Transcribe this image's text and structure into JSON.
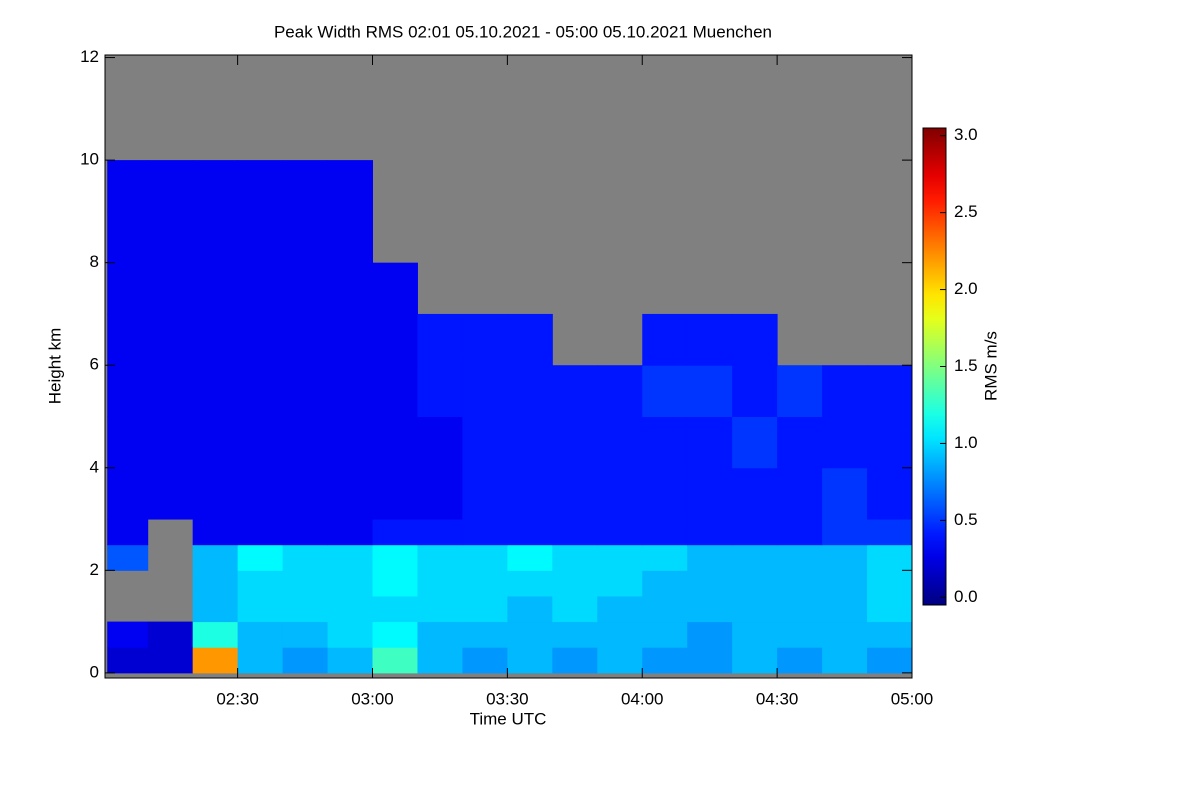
{
  "chart_data": {
    "type": "heatmap",
    "title": "Peak Width RMS   02:01 05.10.2021 - 05:00 05.10.2021 Muenchen",
    "x_label": "Time UTC",
    "y_label": "Height km",
    "colorbar_label": "RMS m/s",
    "colormap": "jet",
    "missing_color": "#808080",
    "xlim": [
      120.5,
      300
    ],
    "ylim": [
      -0.1,
      12.05
    ],
    "clim": [
      -0.05,
      3.05
    ],
    "xticks": [
      {
        "value": 150,
        "label": "02:30"
      },
      {
        "value": 180,
        "label": "03:00"
      },
      {
        "value": 210,
        "label": "03:30"
      },
      {
        "value": 240,
        "label": "04:00"
      },
      {
        "value": 270,
        "label": "04:30"
      },
      {
        "value": 300,
        "label": "05:00"
      }
    ],
    "yticks": [
      0,
      2,
      4,
      6,
      8,
      10,
      12
    ],
    "cticks": [
      {
        "value": 0,
        "label": "0.0"
      },
      {
        "value": 0.5,
        "label": "0.5"
      },
      {
        "value": 1,
        "label": "1.0"
      },
      {
        "value": 1.5,
        "label": "1.5"
      },
      {
        "value": 2,
        "label": "2.0"
      },
      {
        "value": 2.5,
        "label": "2.5"
      },
      {
        "value": 3,
        "label": "3.0"
      }
    ],
    "x_edges": [
      121,
      130,
      140,
      150,
      160,
      170,
      180,
      190,
      200,
      210,
      220,
      230,
      240,
      250,
      260,
      270,
      280,
      290,
      300
    ],
    "y_edges": [
      0,
      0.5,
      1,
      1.5,
      2,
      2.5,
      3,
      4,
      5,
      6,
      7,
      8,
      9,
      10
    ],
    "z": [
      [
        0.2,
        0.2,
        2.2,
        0.9,
        0.8,
        0.9,
        1.3,
        0.9,
        0.8,
        0.9,
        0.8,
        0.9,
        0.8,
        0.8,
        0.9,
        0.8,
        0.9,
        0.8
      ],
      [
        0.3,
        0.2,
        1.2,
        0.9,
        0.9,
        1.0,
        1.1,
        0.9,
        0.9,
        0.9,
        0.9,
        0.9,
        0.9,
        0.8,
        0.9,
        0.9,
        0.9,
        0.9
      ],
      [
        null,
        null,
        0.9,
        1.0,
        1.0,
        1.0,
        1.0,
        1.0,
        1.0,
        0.9,
        1.0,
        0.9,
        0.9,
        0.9,
        0.9,
        0.9,
        0.9,
        1.0
      ],
      [
        null,
        null,
        0.9,
        1.0,
        1.0,
        1.0,
        1.1,
        1.0,
        1.0,
        1.0,
        1.0,
        1.0,
        0.9,
        0.9,
        0.9,
        0.9,
        0.9,
        1.0
      ],
      [
        0.6,
        null,
        0.9,
        1.1,
        1.0,
        1.0,
        1.1,
        1.0,
        1.0,
        1.1,
        1.0,
        1.0,
        1.0,
        0.9,
        0.9,
        0.9,
        0.9,
        1.0
      ],
      [
        0.3,
        null,
        0.3,
        0.3,
        0.3,
        0.3,
        0.4,
        0.4,
        0.4,
        0.4,
        0.4,
        0.4,
        0.4,
        0.4,
        0.4,
        0.4,
        0.5,
        0.5
      ],
      [
        0.3,
        0.3,
        0.3,
        0.3,
        0.3,
        0.3,
        0.3,
        0.3,
        0.4,
        0.4,
        0.4,
        0.4,
        0.4,
        0.4,
        0.4,
        0.4,
        0.5,
        0.4
      ],
      [
        0.3,
        0.3,
        0.3,
        0.3,
        0.3,
        0.3,
        0.3,
        0.3,
        0.4,
        0.4,
        0.4,
        0.4,
        0.4,
        0.4,
        0.5,
        0.4,
        0.4,
        0.4
      ],
      [
        0.3,
        0.3,
        0.3,
        0.3,
        0.3,
        0.3,
        0.3,
        0.4,
        0.4,
        0.4,
        0.4,
        0.4,
        0.5,
        0.5,
        0.4,
        0.5,
        0.4,
        0.4
      ],
      [
        0.3,
        0.3,
        0.3,
        0.3,
        0.3,
        0.3,
        0.3,
        0.4,
        0.4,
        0.4,
        null,
        null,
        0.4,
        0.4,
        0.4,
        null,
        null,
        null
      ],
      [
        0.3,
        0.3,
        0.3,
        0.3,
        0.3,
        0.3,
        0.3,
        null,
        null,
        null,
        null,
        null,
        null,
        null,
        null,
        null,
        null,
        null
      ],
      [
        0.3,
        0.3,
        0.3,
        0.3,
        0.3,
        0.3,
        null,
        null,
        null,
        null,
        null,
        null,
        null,
        null,
        null,
        null,
        null,
        null
      ],
      [
        0.3,
        0.3,
        0.3,
        0.3,
        0.3,
        0.3,
        null,
        null,
        null,
        null,
        null,
        null,
        null,
        null,
        null,
        null,
        null,
        null
      ]
    ]
  }
}
